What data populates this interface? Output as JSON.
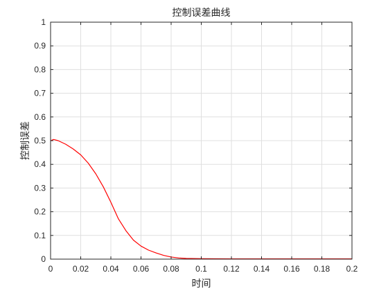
{
  "chart_data": {
    "type": "line",
    "title": "控制误差曲线",
    "xlabel": "时间",
    "ylabel": "控制误差",
    "xlim": [
      0,
      0.2
    ],
    "ylim": [
      0,
      1
    ],
    "xticks": [
      0,
      0.02,
      0.04,
      0.06,
      0.08,
      0.1,
      0.12,
      0.14,
      0.16,
      0.18,
      0.2
    ],
    "xtick_labels": [
      "0",
      "0.02",
      "0.04",
      "0.06",
      "0.08",
      "0.1",
      "0.12",
      "0.14",
      "0.16",
      "0.18",
      "0.2"
    ],
    "yticks": [
      0,
      0.1,
      0.2,
      0.3,
      0.4,
      0.5,
      0.6,
      0.7,
      0.8,
      0.9,
      1
    ],
    "ytick_labels": [
      "0",
      "0.1",
      "0.2",
      "0.3",
      "0.4",
      "0.5",
      "0.6",
      "0.7",
      "0.8",
      "0.9",
      "1"
    ],
    "grid": true,
    "series": [
      {
        "color": "#ff0000",
        "x": [
          0,
          0.002,
          0.005,
          0.01,
          0.015,
          0.02,
          0.025,
          0.03,
          0.035,
          0.04,
          0.045,
          0.05,
          0.055,
          0.06,
          0.065,
          0.07,
          0.075,
          0.08,
          0.085,
          0.09,
          0.1,
          0.12,
          0.14,
          0.16,
          0.18,
          0.2
        ],
        "y": [
          0.5,
          0.505,
          0.5,
          0.485,
          0.465,
          0.44,
          0.405,
          0.36,
          0.305,
          0.24,
          0.17,
          0.12,
          0.08,
          0.055,
          0.038,
          0.026,
          0.016,
          0.009,
          0.005,
          0.003,
          0.002,
          0.001,
          0.001,
          0.001,
          0.001,
          0.001
        ]
      }
    ]
  }
}
